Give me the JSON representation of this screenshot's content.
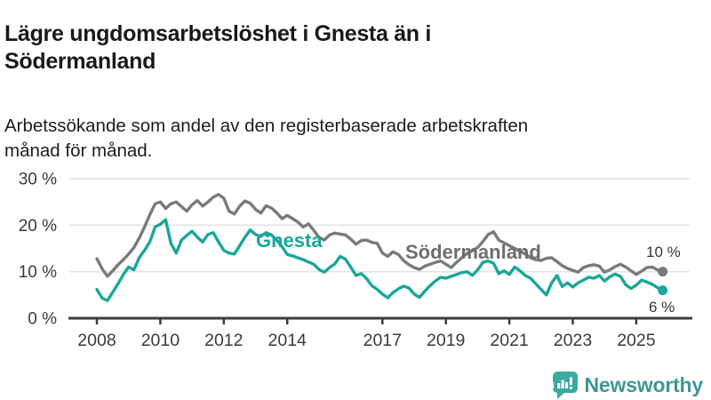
{
  "header": {
    "title": "Lägre ungdomsarbetslöshet i Gnesta än i Södermanland",
    "subtitle": "Arbetssökande som andel av den registerbaserade arbetskraften månad för månad."
  },
  "colors": {
    "grid": "#E3E3E3",
    "axis": "#3C3C3C",
    "tick_text": "#3A3A3A",
    "end_label_text": "#333333",
    "gnesta": "#1AA69B",
    "sodermanland": "#7A7A7A",
    "sodermanland_label": "#6E6E6E",
    "logo_icon": "#3BAAA2",
    "logo_text": "#3E9793"
  },
  "chart_data": {
    "type": "line",
    "x_start": 2008,
    "x_step_years": 0.166667,
    "xlim": [
      2007.1,
      2026.7
    ],
    "ylim": [
      0,
      30
    ],
    "grid": true,
    "legend": "inline-labels",
    "x_ticks": [
      {
        "v": 2008,
        "label": "2008"
      },
      {
        "v": 2010,
        "label": "2010"
      },
      {
        "v": 2012,
        "label": "2012"
      },
      {
        "v": 2014,
        "label": "2014"
      },
      {
        "v": 2017,
        "label": "2017"
      },
      {
        "v": 2019,
        "label": "2019"
      },
      {
        "v": 2021,
        "label": "2021"
      },
      {
        "v": 2023,
        "label": "2023"
      },
      {
        "v": 2025,
        "label": "2025"
      }
    ],
    "y_ticks": [
      {
        "v": 0,
        "label": "0 %"
      },
      {
        "v": 10,
        "label": "10 %"
      },
      {
        "v": 20,
        "label": "20 %"
      },
      {
        "v": 30,
        "label": "30 %"
      }
    ],
    "series": [
      {
        "name": "Södermanland",
        "color": "#7A7A7A",
        "label_color": "#6E6E6E",
        "end_label": "10 %",
        "end_value": 10,
        "values": [
          12.8,
          10.6,
          9.0,
          10.2,
          11.5,
          12.6,
          13.8,
          15.2,
          17.2,
          19.6,
          22.2,
          24.6,
          25.0,
          23.6,
          24.6,
          25.0,
          24.0,
          23.0,
          24.4,
          25.3,
          24.1,
          25.0,
          26.0,
          26.6,
          25.8,
          23.0,
          22.4,
          24.1,
          25.2,
          24.7,
          23.4,
          22.6,
          24.2,
          23.7,
          22.7,
          21.4,
          22.1,
          21.4,
          20.7,
          19.6,
          20.3,
          18.9,
          17.4,
          16.8,
          17.9,
          18.3,
          18.1,
          17.9,
          17.0,
          15.9,
          16.7,
          16.8,
          16.3,
          16.1,
          14.0,
          13.3,
          14.3,
          13.7,
          12.4,
          11.5,
          10.9,
          10.5,
          11.2,
          11.6,
          12.0,
          12.3,
          11.6,
          10.9,
          12.0,
          13.0,
          13.9,
          14.5,
          15.2,
          16.5,
          18.0,
          18.6,
          16.8,
          16.2,
          15.6,
          15.0,
          14.4,
          13.8,
          13.0,
          12.6,
          12.4,
          12.9,
          13.0,
          12.2,
          11.3,
          10.7,
          10.3,
          9.9,
          10.9,
          11.3,
          11.5,
          11.2,
          9.9,
          10.4,
          11.1,
          11.6,
          11.0,
          10.2,
          9.4,
          10.1,
          10.9,
          11.0,
          10.4,
          10.0
        ]
      },
      {
        "name": "Gnesta",
        "color": "#1AA69B",
        "label_color": "#1AA69B",
        "end_label": "6 %",
        "end_value": 6,
        "values": [
          6.2,
          4.3,
          3.8,
          5.6,
          7.4,
          9.4,
          11.0,
          10.4,
          13.0,
          14.6,
          16.4,
          19.6,
          20.2,
          21.2,
          16.1,
          14.0,
          16.8,
          17.8,
          18.7,
          17.4,
          16.4,
          18.0,
          18.4,
          16.4,
          14.6,
          14.0,
          13.8,
          15.6,
          17.4,
          19.0,
          18.0,
          17.6,
          18.4,
          17.9,
          16.8,
          15.4,
          13.7,
          13.4,
          13.0,
          12.6,
          12.1,
          11.6,
          10.5,
          9.9,
          10.9,
          11.7,
          13.3,
          12.7,
          11.0,
          9.2,
          9.6,
          8.5,
          7.0,
          6.2,
          5.2,
          4.4,
          5.5,
          6.3,
          6.9,
          6.5,
          5.2,
          4.5,
          5.8,
          7.0,
          8.0,
          8.8,
          8.6,
          9.0,
          9.4,
          9.8,
          10.0,
          9.2,
          10.4,
          12.0,
          12.3,
          11.8,
          9.6,
          10.2,
          9.4,
          11.0,
          10.2,
          9.2,
          8.6,
          7.4,
          6.2,
          5.0,
          7.6,
          9.2,
          6.8,
          7.6,
          6.7,
          7.6,
          8.2,
          8.8,
          8.6,
          9.2,
          8.0,
          8.9,
          9.5,
          9.0,
          7.2,
          6.4,
          7.1,
          8.2,
          7.8,
          7.3,
          6.6,
          6.0
        ]
      }
    ]
  },
  "logo": {
    "text": "Newsworthy",
    "icon": "newsworthy-bar-chart-bubble-icon"
  }
}
